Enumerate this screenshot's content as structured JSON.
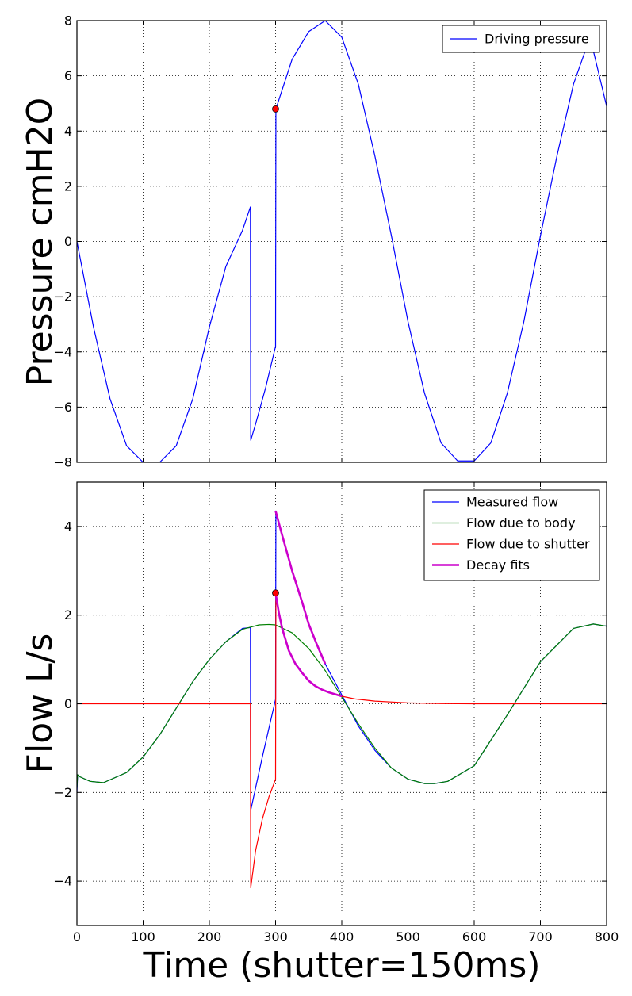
{
  "chart_data": [
    {
      "type": "line",
      "ylabel": "Pressure cmH2O",
      "xlim": [
        0,
        800
      ],
      "ylim": [
        -8,
        8
      ],
      "xticks": [
        0,
        100,
        200,
        300,
        400,
        500,
        600,
        700,
        800
      ],
      "yticks": [
        -8,
        -6,
        -4,
        -2,
        0,
        2,
        4,
        6,
        8
      ],
      "ytick_labels": [
        "−8",
        "−6",
        "−4",
        "−2",
        "0",
        "2",
        "4",
        "6",
        "8"
      ],
      "show_xtick_labels": false,
      "grid": true,
      "legend_position": "top-right",
      "series": [
        {
          "name": "Driving pressure",
          "color": "#0000ff",
          "width": 1.2,
          "x": [
            0,
            25,
            50,
            75,
            100,
            125,
            150,
            175,
            200,
            225,
            250,
            262,
            262.5,
            270,
            285,
            300,
            300.5,
            325,
            350,
            375,
            400,
            425,
            450,
            475,
            500,
            525,
            550,
            575,
            600,
            625,
            650,
            675,
            700,
            725,
            750,
            775,
            800
          ],
          "y": [
            0,
            -3.1,
            -5.7,
            -7.4,
            -8.0,
            -8.0,
            -7.4,
            -5.7,
            -3.1,
            -0.9,
            0.4,
            1.25,
            -7.2,
            -6.6,
            -5.3,
            -3.8,
            4.8,
            6.6,
            7.6,
            8.0,
            7.4,
            5.7,
            3.1,
            0.2,
            -2.9,
            -5.5,
            -7.3,
            -7.95,
            -7.95,
            -7.3,
            -5.5,
            -2.9,
            0.2,
            3.1,
            5.7,
            7.4,
            4.9
          ]
        }
      ],
      "markers": [
        {
          "x": 300,
          "y": 4.8,
          "color": "#ff0000"
        }
      ]
    },
    {
      "type": "line",
      "ylabel": "Flow L/s",
      "xlabel": "Time (shutter=150ms)",
      "xlim": [
        0,
        800
      ],
      "ylim": [
        -5,
        5
      ],
      "xticks": [
        0,
        100,
        200,
        300,
        400,
        500,
        600,
        700,
        800
      ],
      "xtick_labels": [
        "0",
        "100",
        "200",
        "300",
        "400",
        "500",
        "600",
        "700",
        "800"
      ],
      "yticks": [
        -4,
        -2,
        0,
        2,
        4
      ],
      "ytick_labels": [
        "−4",
        "−2",
        "0",
        "2",
        "4"
      ],
      "show_xtick_labels": true,
      "grid": true,
      "legend_position": "top-right",
      "series": [
        {
          "name": "Measured flow",
          "color": "#0000ff",
          "width": 1.2,
          "x": [
            0,
            1,
            5,
            20,
            40,
            75,
            100,
            125,
            150,
            175,
            200,
            225,
            250,
            262,
            262.5,
            280,
            300,
            300.5,
            310,
            325,
            350,
            375,
            400,
            425,
            450,
            475,
            500,
            525,
            540,
            560,
            600,
            650,
            700,
            750,
            780,
            800
          ],
          "y": [
            -2.0,
            -1.6,
            -1.65,
            -1.75,
            -1.78,
            -1.55,
            -1.2,
            -0.7,
            -0.1,
            0.5,
            1.0,
            1.4,
            1.7,
            1.72,
            -2.4,
            -1.2,
            0.1,
            4.35,
            3.8,
            3.0,
            1.8,
            0.9,
            0.2,
            -0.5,
            -1.05,
            -1.45,
            -1.7,
            -1.8,
            -1.8,
            -1.75,
            -1.4,
            -0.25,
            0.95,
            1.7,
            1.8,
            1.75
          ]
        },
        {
          "name": "Flow due to body",
          "color": "#008000",
          "width": 1.2,
          "x": [
            0,
            1,
            5,
            20,
            40,
            75,
            100,
            125,
            150,
            175,
            200,
            225,
            250,
            275,
            290,
            300,
            325,
            350,
            375,
            400,
            425,
            450,
            475,
            500,
            525,
            540,
            560,
            600,
            650,
            700,
            750,
            780,
            800
          ],
          "y": [
            -1.9,
            -1.6,
            -1.65,
            -1.75,
            -1.78,
            -1.55,
            -1.2,
            -0.7,
            -0.1,
            0.5,
            1.0,
            1.4,
            1.68,
            1.78,
            1.79,
            1.78,
            1.6,
            1.25,
            0.75,
            0.15,
            -0.45,
            -1.0,
            -1.45,
            -1.7,
            -1.8,
            -1.8,
            -1.75,
            -1.4,
            -0.25,
            0.95,
            1.7,
            1.8,
            1.75
          ]
        },
        {
          "name": "Flow due to shutter",
          "color": "#ff0000",
          "width": 1.2,
          "x": [
            0,
            262,
            262.5,
            270,
            280,
            290,
            300,
            300.5,
            305,
            310,
            320,
            330,
            340,
            350,
            360,
            370,
            380,
            400,
            420,
            450,
            500,
            550,
            600,
            700,
            800
          ],
          "y": [
            0,
            0,
            -4.15,
            -3.3,
            -2.6,
            -2.1,
            -1.7,
            2.5,
            2.05,
            1.7,
            1.2,
            0.9,
            0.7,
            0.52,
            0.4,
            0.32,
            0.26,
            0.17,
            0.11,
            0.06,
            0.02,
            0.005,
            0.0,
            0,
            0
          ]
        },
        {
          "name": "Decay fits",
          "color": "#cc00cc",
          "width": 2.6,
          "x": [
            300,
            305,
            310,
            320,
            330,
            340,
            350,
            360,
            370,
            380,
            400
          ],
          "y": [
            2.5,
            2.05,
            1.7,
            1.2,
            0.9,
            0.7,
            0.52,
            0.4,
            0.32,
            0.26,
            0.17
          ]
        },
        {
          "name": "",
          "color": "#cc00cc",
          "width": 2.6,
          "x": [
            300,
            310,
            325,
            340,
            350,
            362,
            375
          ],
          "y": [
            4.35,
            3.8,
            3.0,
            2.3,
            1.8,
            1.35,
            0.9
          ]
        }
      ],
      "markers": [
        {
          "x": 300,
          "y": 2.5,
          "color": "#ff0000"
        }
      ]
    }
  ]
}
